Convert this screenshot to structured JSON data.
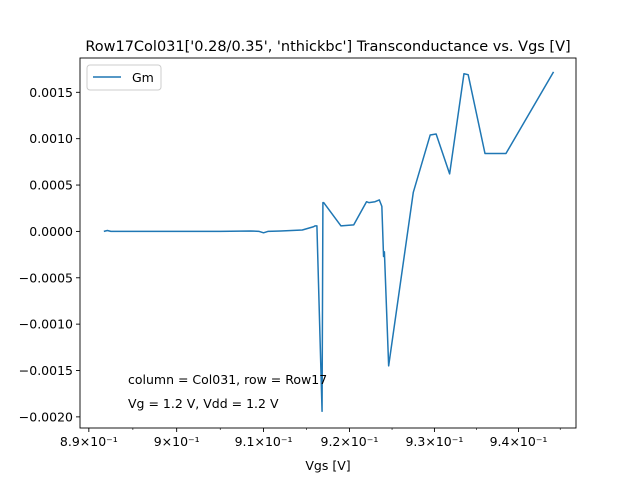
{
  "chart_data": {
    "type": "line",
    "title": "Row17Col031['0.28/0.35', 'nthickbc'] Transconductance vs. Vgs [V]",
    "xlabel": "Vgs [V]",
    "ylabel": "",
    "xscale": "log",
    "xlim": [
      0.889,
      0.9469
    ],
    "ylim": [
      -0.00212,
      0.00187
    ],
    "grid": false,
    "legend_position": "upper-left",
    "x_ticks": [
      {
        "value": 0.89,
        "label": "8.9×10⁻¹"
      },
      {
        "value": 0.9,
        "label": "9×10⁻¹"
      },
      {
        "value": 0.91,
        "label": "9.1×10⁻¹"
      },
      {
        "value": 0.92,
        "label": "9.2×10⁻¹"
      },
      {
        "value": 0.93,
        "label": "9.3×10⁻¹"
      },
      {
        "value": 0.94,
        "label": "9.4×10⁻¹"
      }
    ],
    "y_ticks": [
      {
        "value": 0.0015,
        "label": "0.0015"
      },
      {
        "value": 0.001,
        "label": "0.0010"
      },
      {
        "value": 0.0005,
        "label": "0.0005"
      },
      {
        "value": 0.0,
        "label": "0.0000"
      },
      {
        "value": -0.0005,
        "label": "−0.0005"
      },
      {
        "value": -0.001,
        "label": "−0.0010"
      },
      {
        "value": -0.0015,
        "label": "−0.0015"
      },
      {
        "value": -0.002,
        "label": "−0.0020"
      }
    ],
    "series": [
      {
        "name": "Gm",
        "color": "#1f77b4",
        "x": [
          0.8917,
          0.8921,
          0.8925,
          0.895,
          0.9,
          0.905,
          0.9085,
          0.9095,
          0.91,
          0.9105,
          0.912,
          0.9145,
          0.9158,
          0.916,
          0.9162,
          0.9168,
          0.9169,
          0.917,
          0.919,
          0.9205,
          0.922,
          0.9223,
          0.923,
          0.9235,
          0.9238,
          0.924,
          0.9241,
          0.9246,
          0.9275,
          0.9295,
          0.9302,
          0.9318,
          0.9335,
          0.934,
          0.936,
          0.9385,
          0.9442
        ],
        "y": [
          0.0,
          1e-05,
          0.0,
          0.0,
          0.0,
          0.0,
          5e-06,
          0.0,
          -1.5e-05,
          0.0,
          5e-06,
          1.5e-05,
          5e-05,
          6e-05,
          6e-05,
          -0.00194,
          0.00031,
          0.00031,
          6e-05,
          7e-05,
          0.00032,
          0.00031,
          0.00032,
          0.00034,
          0.00027,
          -0.00027,
          -0.00022,
          -0.00145,
          0.00042,
          0.00104,
          0.00105,
          0.00062,
          0.0017,
          0.00169,
          0.00084,
          0.00084,
          0.00172
        ]
      }
    ],
    "annotations": [
      "column = Col031, row = Row17",
      "Vg = 1.2 V, Vdd = 1.2 V"
    ]
  }
}
